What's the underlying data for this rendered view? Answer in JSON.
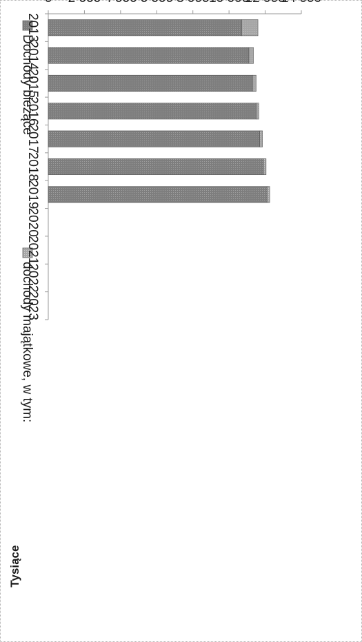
{
  "chart_data": {
    "type": "bar",
    "stacked": true,
    "orientation": "rotated-90-clockwise",
    "ylabel": "Tysiące",
    "ylim": [
      0,
      14000
    ],
    "yticks": [
      "0",
      "2 000",
      "4 000",
      "6 000",
      "8 000",
      "10 000",
      "12 000",
      "14 000"
    ],
    "categories": [
      "2013",
      "2014",
      "2015",
      "2016",
      "2017",
      "2018",
      "2019",
      "2020",
      "2021",
      "2022",
      "2023"
    ],
    "series": [
      {
        "name": "Dochody bieżące",
        "color": "#8c8c8c",
        "values": [
          10700,
          11100,
          11300,
          11500,
          11700,
          11900,
          12100,
          null,
          null,
          null,
          null
        ]
      },
      {
        "name": "dochody majątkowe, w tym:",
        "color": "#a8a8a8",
        "values": [
          900,
          250,
          200,
          150,
          150,
          150,
          150,
          null,
          null,
          null,
          null
        ]
      }
    ],
    "legend_position": "top",
    "grid": false
  }
}
